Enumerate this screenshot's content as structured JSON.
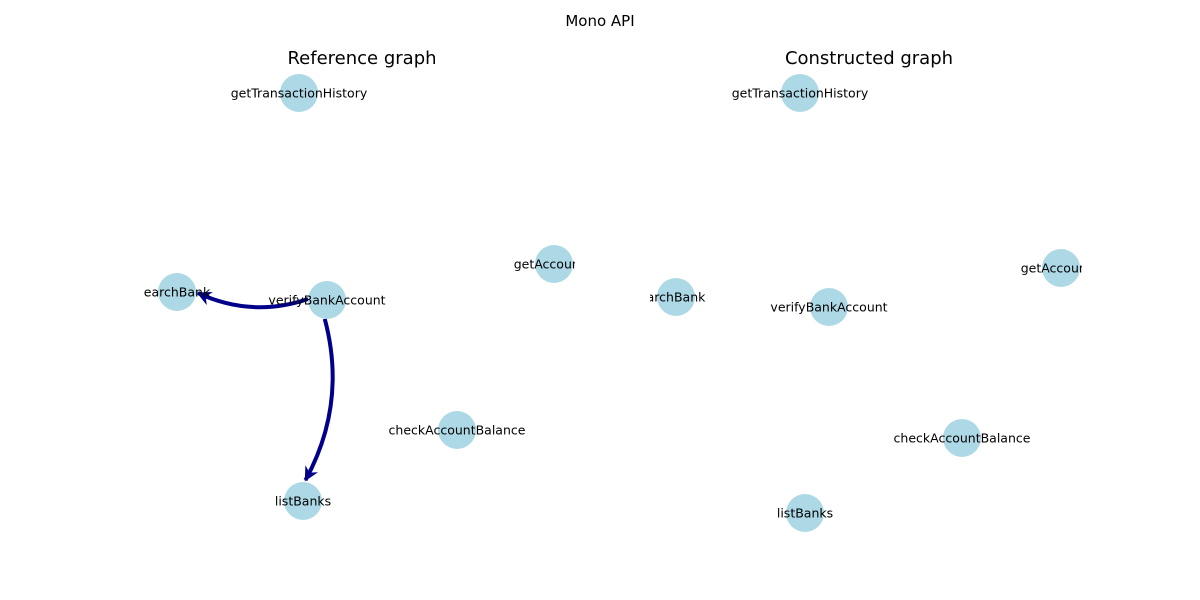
{
  "figure": {
    "title": "Mono API"
  },
  "colors": {
    "node_fill": "#add8e6",
    "edge_color": "#00008b",
    "background": "#ffffff"
  },
  "panels": [
    {
      "id": "reference",
      "title": "Reference graph",
      "nodes": [
        {
          "id": "getTransactionHistory",
          "label": "getTransactionHistory"
        },
        {
          "id": "getAccountDetails",
          "label": "getAccountD"
        },
        {
          "id": "searchBank",
          "label": "earchBank"
        },
        {
          "id": "verifyBankAccount",
          "label": "verifyBankAccount"
        },
        {
          "id": "checkAccountBalance",
          "label": "checkAccountBalance"
        },
        {
          "id": "listBanks",
          "label": "listBanks"
        }
      ],
      "edges": [
        {
          "source": "verifyBankAccount",
          "target": "searchBank",
          "directed": true
        },
        {
          "source": "verifyBankAccount",
          "target": "listBanks",
          "directed": true
        }
      ]
    },
    {
      "id": "constructed",
      "title": "Constructed graph",
      "nodes": [
        {
          "id": "getTransactionHistory",
          "label": "getTransactionHistory"
        },
        {
          "id": "getAccountDetails",
          "label": "getAccountD"
        },
        {
          "id": "searchBank",
          "label": "archBank"
        },
        {
          "id": "verifyBankAccount",
          "label": "verifyBankAccount"
        },
        {
          "id": "checkAccountBalance",
          "label": "checkAccountBalance"
        },
        {
          "id": "listBanks",
          "label": "listBanks"
        }
      ],
      "edges": []
    }
  ]
}
